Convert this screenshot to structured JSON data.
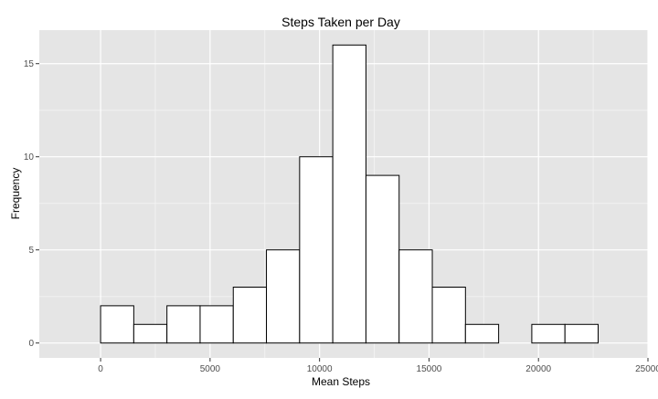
{
  "chart_data": {
    "type": "bar",
    "title": "Steps Taken per Day",
    "xlabel": "Mean Steps",
    "ylabel": "Frequency",
    "bin_width": 1515,
    "bins": [
      {
        "start": -1515,
        "end": 0,
        "count": 0
      },
      {
        "start": 0,
        "end": 1515,
        "count": 2
      },
      {
        "start": 1515,
        "end": 3030,
        "count": 1
      },
      {
        "start": 3030,
        "end": 4545,
        "count": 2
      },
      {
        "start": 4545,
        "end": 6060,
        "count": 2
      },
      {
        "start": 6060,
        "end": 7575,
        "count": 3
      },
      {
        "start": 7575,
        "end": 9090,
        "count": 5
      },
      {
        "start": 9090,
        "end": 10605,
        "count": 10
      },
      {
        "start": 10605,
        "end": 12120,
        "count": 16
      },
      {
        "start": 12120,
        "end": 13635,
        "count": 9
      },
      {
        "start": 13635,
        "end": 15150,
        "count": 5
      },
      {
        "start": 15150,
        "end": 16665,
        "count": 3
      },
      {
        "start": 16665,
        "end": 18180,
        "count": 1
      },
      {
        "start": 18180,
        "end": 19695,
        "count": 0
      },
      {
        "start": 19695,
        "end": 21210,
        "count": 1
      },
      {
        "start": 21210,
        "end": 22725,
        "count": 1
      },
      {
        "start": 22725,
        "end": 24240,
        "count": 0
      }
    ],
    "xlim": [
      -2800,
      25000
    ],
    "ylim": [
      -0.8,
      16.8
    ],
    "x_ticks": [
      0,
      5000,
      10000,
      15000,
      20000,
      25000
    ],
    "x_tick_labels": [
      "0",
      "5000",
      "10000",
      "15000",
      "20000",
      "25000"
    ],
    "y_ticks": [
      0,
      5,
      10,
      15
    ],
    "y_tick_labels": [
      "0",
      "5",
      "10",
      "15"
    ],
    "grid": true,
    "colors": {
      "panel": "#e5e5e5",
      "grid_major": "#ffffff",
      "grid_minor": "#f2f2f2",
      "bar_fill": "#ffffff",
      "bar_stroke": "#000000",
      "tick_text": "#4d4d4d"
    }
  }
}
